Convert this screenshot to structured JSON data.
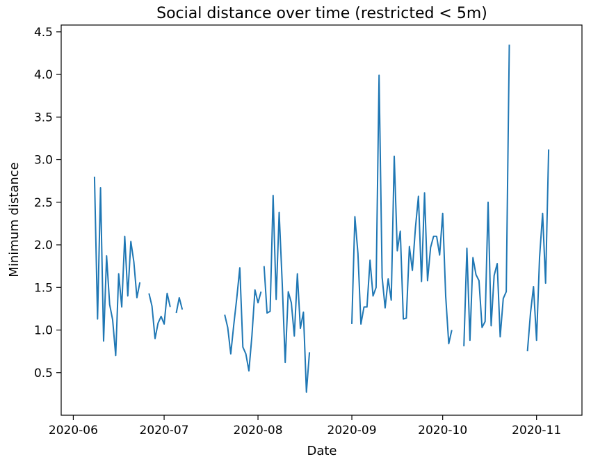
{
  "chart_data": {
    "type": "line",
    "title": "Social distance over time (restricted < 5m)",
    "xlabel": "Date",
    "ylabel": "Minimum distance",
    "xlim": [
      "2020-05-28",
      "2020-11-16"
    ],
    "ylim": [
      0.0,
      4.58
    ],
    "x_ticks": [
      "2020-06-01",
      "2020-07-01",
      "2020-08-01",
      "2020-09-01",
      "2020-10-01",
      "2020-11-01"
    ],
    "x_tick_labels": [
      "2020-06",
      "2020-07",
      "2020-08",
      "2020-09",
      "2020-10",
      "2020-11"
    ],
    "y_ticks": [
      0.5,
      1.0,
      1.5,
      2.0,
      2.5,
      3.0,
      3.5,
      4.0,
      4.5
    ],
    "y_tick_labels": [
      "0.5",
      "1.0",
      "1.5",
      "2.0",
      "2.5",
      "3.0",
      "3.5",
      "4.0",
      "4.5"
    ],
    "grid": false,
    "legend": "none",
    "color": "#1f77b4",
    "series": [
      {
        "segments": [
          [
            [
              "2020-06-08",
              2.8
            ],
            [
              "2020-06-09",
              1.13
            ],
            [
              "2020-06-10",
              2.67
            ],
            [
              "2020-06-11",
              0.87
            ],
            [
              "2020-06-12",
              1.87
            ],
            [
              "2020-06-13",
              1.3
            ],
            [
              "2020-06-14",
              1.12
            ],
            [
              "2020-06-15",
              0.7
            ],
            [
              "2020-06-16",
              1.66
            ],
            [
              "2020-06-17",
              1.27
            ],
            [
              "2020-06-18",
              2.1
            ],
            [
              "2020-06-19",
              1.4
            ],
            [
              "2020-06-20",
              2.04
            ],
            [
              "2020-06-21",
              1.8
            ],
            [
              "2020-06-22",
              1.38
            ],
            [
              "2020-06-23",
              1.56
            ]
          ],
          [
            [
              "2020-06-26",
              1.43
            ],
            [
              "2020-06-27",
              1.28
            ],
            [
              "2020-06-28",
              0.9
            ],
            [
              "2020-06-29",
              1.08
            ],
            [
              "2020-06-30",
              1.16
            ],
            [
              "2020-07-01",
              1.07
            ],
            [
              "2020-07-02",
              1.43
            ],
            [
              "2020-07-03",
              1.27
            ]
          ],
          [
            [
              "2020-07-05",
              1.2
            ],
            [
              "2020-07-06",
              1.38
            ],
            [
              "2020-07-07",
              1.24
            ]
          ],
          [
            [
              "2020-07-21",
              1.18
            ],
            [
              "2020-07-22",
              1.03
            ],
            [
              "2020-07-23",
              0.72
            ],
            [
              "2020-07-24",
              1.06
            ],
            [
              "2020-07-25",
              1.38
            ],
            [
              "2020-07-26",
              1.73
            ],
            [
              "2020-07-27",
              0.8
            ],
            [
              "2020-07-28",
              0.72
            ],
            [
              "2020-07-29",
              0.52
            ],
            [
              "2020-07-30",
              0.93
            ],
            [
              "2020-07-31",
              1.47
            ],
            [
              "2020-08-01",
              1.32
            ],
            [
              "2020-08-02",
              1.45
            ]
          ],
          [
            [
              "2020-08-03",
              1.75
            ],
            [
              "2020-08-04",
              1.2
            ],
            [
              "2020-08-05",
              1.22
            ],
            [
              "2020-08-06",
              2.58
            ],
            [
              "2020-08-07",
              1.36
            ],
            [
              "2020-08-08",
              2.38
            ],
            [
              "2020-08-09",
              1.55
            ],
            [
              "2020-08-10",
              0.62
            ],
            [
              "2020-08-11",
              1.45
            ],
            [
              "2020-08-12",
              1.32
            ],
            [
              "2020-08-13",
              0.93
            ],
            [
              "2020-08-14",
              1.66
            ],
            [
              "2020-08-15",
              1.02
            ],
            [
              "2020-08-16",
              1.21
            ],
            [
              "2020-08-17",
              0.27
            ],
            [
              "2020-08-18",
              0.74
            ]
          ],
          [
            [
              "2020-09-01",
              1.07
            ],
            [
              "2020-09-02",
              2.33
            ],
            [
              "2020-09-03",
              1.9
            ],
            [
              "2020-09-04",
              1.07
            ],
            [
              "2020-09-05",
              1.27
            ],
            [
              "2020-09-06",
              1.27
            ],
            [
              "2020-09-07",
              1.82
            ],
            [
              "2020-09-08",
              1.4
            ],
            [
              "2020-09-09",
              1.5
            ],
            [
              "2020-09-10",
              3.99
            ],
            [
              "2020-09-11",
              1.62
            ],
            [
              "2020-09-12",
              1.26
            ],
            [
              "2020-09-13",
              1.6
            ],
            [
              "2020-09-14",
              1.35
            ],
            [
              "2020-09-15",
              3.04
            ],
            [
              "2020-09-16",
              1.93
            ],
            [
              "2020-09-17",
              2.16
            ],
            [
              "2020-09-18",
              1.13
            ],
            [
              "2020-09-19",
              1.14
            ],
            [
              "2020-09-20",
              1.98
            ],
            [
              "2020-09-21",
              1.7
            ],
            [
              "2020-09-22",
              2.2
            ],
            [
              "2020-09-23",
              2.57
            ],
            [
              "2020-09-24",
              1.57
            ],
            [
              "2020-09-25",
              2.61
            ],
            [
              "2020-09-26",
              1.58
            ],
            [
              "2020-09-27",
              1.97
            ],
            [
              "2020-09-28",
              2.1
            ],
            [
              "2020-09-29",
              2.1
            ],
            [
              "2020-09-30",
              1.88
            ],
            [
              "2020-10-01",
              2.37
            ],
            [
              "2020-10-02",
              1.4
            ],
            [
              "2020-10-03",
              0.84
            ],
            [
              "2020-10-04",
              1.0
            ]
          ],
          [
            [
              "2020-10-08",
              0.81
            ],
            [
              "2020-10-09",
              1.96
            ],
            [
              "2020-10-10",
              0.88
            ],
            [
              "2020-10-11",
              1.85
            ],
            [
              "2020-10-12",
              1.65
            ],
            [
              "2020-10-13",
              1.58
            ],
            [
              "2020-10-14",
              1.03
            ],
            [
              "2020-10-15",
              1.1
            ],
            [
              "2020-10-16",
              2.5
            ],
            [
              "2020-10-17",
              1.05
            ],
            [
              "2020-10-18",
              1.64
            ],
            [
              "2020-10-19",
              1.78
            ],
            [
              "2020-10-20",
              0.92
            ],
            [
              "2020-10-21",
              1.37
            ],
            [
              "2020-10-22",
              1.45
            ],
            [
              "2020-10-23",
              4.35
            ]
          ],
          [
            [
              "2020-10-29",
              0.75
            ],
            [
              "2020-10-30",
              1.2
            ],
            [
              "2020-10-31",
              1.51
            ],
            [
              "2020-11-01",
              0.88
            ],
            [
              "2020-11-02",
              1.85
            ],
            [
              "2020-11-03",
              2.37
            ],
            [
              "2020-11-04",
              1.55
            ],
            [
              "2020-11-05",
              3.12
            ]
          ]
        ]
      }
    ]
  }
}
